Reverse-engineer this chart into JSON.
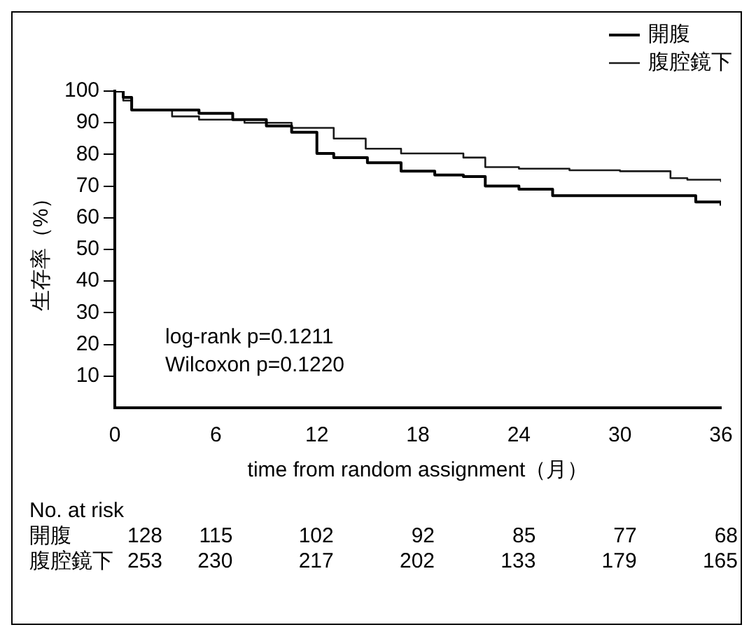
{
  "chart_data": {
    "type": "step",
    "ylabel": "生存率（%）",
    "xlabel": "time from random assignment（月）",
    "xlim": [
      0,
      36
    ],
    "xticks": [
      0,
      6,
      12,
      18,
      24,
      30,
      36
    ],
    "ylim": [
      0,
      100
    ],
    "yticks": [
      10,
      20,
      30,
      40,
      50,
      60,
      70,
      80,
      90,
      100
    ],
    "grid": false,
    "legend": "top right",
    "marker": "none",
    "line_style": "solid",
    "series": [
      {
        "name": "開腹",
        "color": "#000000",
        "x": [
          0,
          0.5,
          1,
          3,
          5,
          7,
          9,
          10.5,
          12,
          13,
          15,
          17,
          19,
          20.7,
          22,
          24,
          26,
          28,
          30,
          33,
          34.5,
          36
        ],
        "values": [
          100,
          98,
          94,
          94,
          93,
          91,
          89,
          87,
          80.3,
          79,
          77.4,
          74.7,
          73.5,
          73,
          70,
          69,
          67,
          67,
          67,
          67,
          65,
          63.8
        ]
      },
      {
        "name": "腹腔鏡下",
        "color": "#1a1a1a",
        "x": [
          0,
          0.5,
          1,
          3.4,
          5,
          7.7,
          10.5,
          13,
          14.9,
          17,
          20.7,
          22,
          24,
          27,
          30,
          33,
          34,
          36
        ],
        "values": [
          100,
          97,
          94,
          92,
          91,
          90,
          88.4,
          85,
          81.8,
          80.3,
          79,
          76,
          75.5,
          75,
          74.7,
          72.5,
          72,
          71.3
        ]
      }
    ],
    "annotations": [
      "log-rank p=0.1211",
      "Wilcoxon p=0.1220",
      "No. at risk",
      "開腹 128 115 102 92 85 77 68",
      "腹腔鏡下 253 230 217 202 133 179 165"
    ]
  }
}
